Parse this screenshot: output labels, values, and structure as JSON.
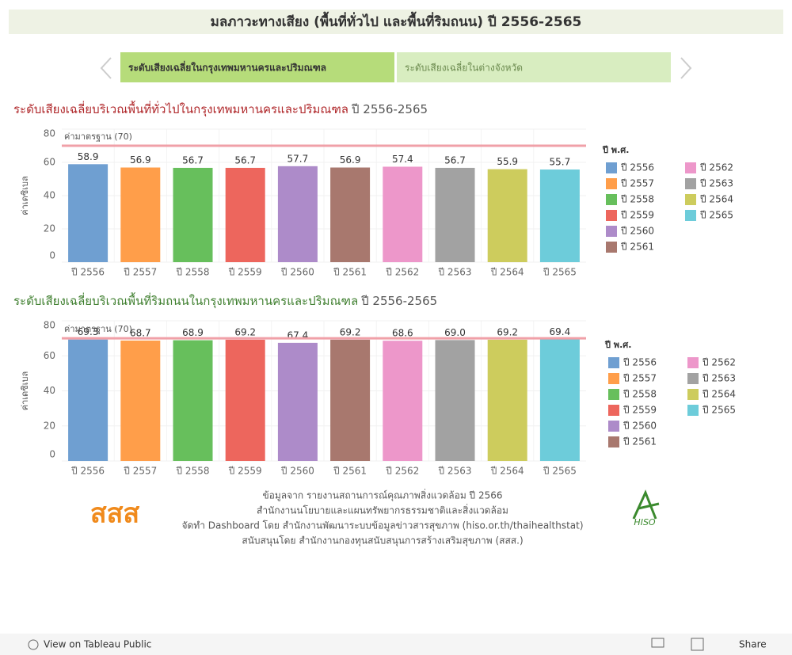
{
  "header": {
    "title": "มลภาวะทางเสียง (พื้นที่ทั่วไป และพื้นที่ริมถนน) ปี 2556-2565"
  },
  "tabs": [
    "ระดับเสียงเฉลี่ยในกรุงเทพมหานครและปริมณฑล",
    "ระดับเสียงเฉลี่ยในต่างจังหวัด"
  ],
  "chart_data": [
    {
      "type": "bar",
      "title": "ระดับเสียงเฉลี่ยบริเวณพื้นที่ทั่วไปในกรุงเทพมหานครและปริมณฑล",
      "subtitle": "ปี 2556-2565",
      "ylabel": "ค่าเดซิเบล",
      "ylim": [
        0,
        80
      ],
      "yticks": [
        0,
        20,
        40,
        60,
        80
      ],
      "categories": [
        "ปี 2556",
        "ปี 2557",
        "ปี 2558",
        "ปี 2559",
        "ปี 2560",
        "ปี 2561",
        "ปี 2562",
        "ปี 2563",
        "ปี 2564",
        "ปี 2565"
      ],
      "values": [
        58.9,
        56.9,
        56.7,
        56.7,
        57.7,
        56.9,
        57.4,
        56.7,
        55.9,
        55.7
      ],
      "value_labels": [
        "58.9",
        "56.9",
        "56.7",
        "56.7",
        "57.7",
        "56.9",
        "57.4",
        "56.7",
        "55.9",
        "55.7"
      ],
      "colors": [
        "#6f9fd1",
        "#ff9e4a",
        "#67bf5c",
        "#ed665d",
        "#ad8bc9",
        "#a8786e",
        "#ed97ca",
        "#a2a2a2",
        "#cdcc5d",
        "#6dccda"
      ],
      "reference_line": {
        "value": 70,
        "label": "ค่ามาตรฐาน (70)"
      },
      "legend_title": "ปี พ.ศ.",
      "title_color": "#b0282b"
    },
    {
      "type": "bar",
      "title": "ระดับเสียงเฉลี่ยบริเวณพื้นที่ริมถนนในกรุงเทพมหานครและปริมณฑล",
      "subtitle": "ปี 2556-2565",
      "ylabel": "ค่าเดซิเบล",
      "ylim": [
        0,
        80
      ],
      "yticks": [
        0,
        20,
        40,
        60,
        80
      ],
      "categories": [
        "ปี 2556",
        "ปี 2557",
        "ปี 2558",
        "ปี 2559",
        "ปี 2560",
        "ปี 2561",
        "ปี 2562",
        "ปี 2563",
        "ปี 2564",
        "ปี 2565"
      ],
      "values": [
        69.3,
        68.7,
        68.9,
        69.2,
        67.4,
        69.2,
        68.6,
        69.0,
        69.2,
        69.4
      ],
      "value_labels": [
        "69.3",
        "68.7",
        "68.9",
        "69.2",
        "67.4",
        "69.2",
        "68.6",
        "69.0",
        "69.2",
        "69.4"
      ],
      "colors": [
        "#6f9fd1",
        "#ff9e4a",
        "#67bf5c",
        "#ed665d",
        "#ad8bc9",
        "#a8786e",
        "#ed97ca",
        "#a2a2a2",
        "#cdcc5d",
        "#6dccda"
      ],
      "reference_line": {
        "value": 70,
        "label": "ค่ามาตรฐาน (70)"
      },
      "legend_title": "ปี พ.ศ.",
      "title_color": "#3f7f2f"
    }
  ],
  "footer": [
    "ข้อมูลจาก รายงานสถานการณ์คุณภาพสิ่งแวดล้อม ปี 2566",
    "สำนักงานนโยบายและแผนทรัพยากรธรรมชาติและสิ่งแวดล้อม",
    "จัดทำ Dashboard โดย สำนักงานพัฒนาระบบข้อมูลข่าวสารสุขภาพ (hiso.or.th/thaihealthstat)",
    "สนับสนุนโดย สำนักงานกองทุนสนับสนุนการสร้างเสริมสุขภาพ (สสส.)"
  ],
  "logos": {
    "left": "สสส",
    "right": "HISO"
  },
  "toolbar": {
    "view": "View on Tableau Public",
    "share": "Share"
  }
}
